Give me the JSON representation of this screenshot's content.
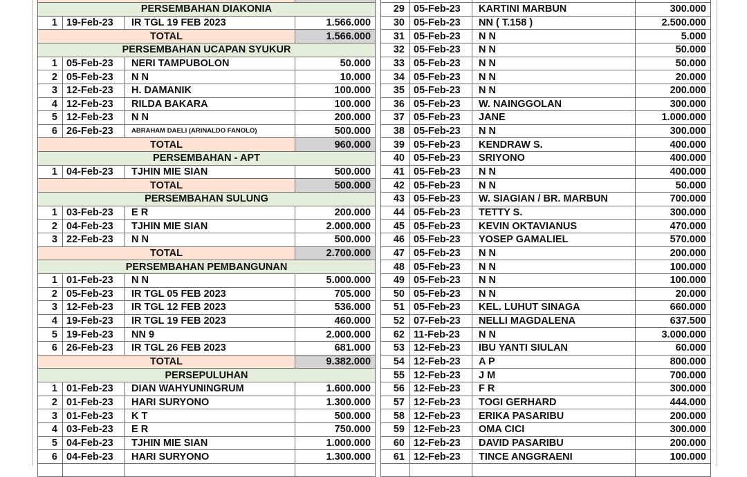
{
  "colors": {
    "section_bg": "#e2eed9",
    "total_bg": "#fce3d4",
    "total_value_bg": "#d4d2d2",
    "border": "#6e6e6e"
  },
  "left": {
    "rows": [
      {
        "type": "partial-total"
      },
      {
        "type": "section",
        "title": "PERSEMBAHAN DIAKONIA"
      },
      {
        "type": "entry",
        "no": "1",
        "date": "19-Feb-23",
        "name": "IR TGL 19 FEB 2023",
        "amount": "1.566.000"
      },
      {
        "type": "total",
        "label": "TOTAL",
        "amount": "1.566.000"
      },
      {
        "type": "section",
        "title": "PERSEMBAHAN UCAPAN SYUKUR"
      },
      {
        "type": "entry",
        "no": "1",
        "date": "05-Feb-23",
        "name": "NERI TAMPUBOLON",
        "amount": "50.000"
      },
      {
        "type": "entry",
        "no": "2",
        "date": "05-Feb-23",
        "name": "N N",
        "amount": "10.000"
      },
      {
        "type": "entry",
        "no": "3",
        "date": "12-Feb-23",
        "name": "H. DAMANIK",
        "amount": "100.000"
      },
      {
        "type": "entry",
        "no": "4",
        "date": "12-Feb-23",
        "name": "RILDA BAKARA",
        "amount": "100.000"
      },
      {
        "type": "entry",
        "no": "5",
        "date": "12-Feb-23",
        "name": "N N",
        "amount": "200.000"
      },
      {
        "type": "entry",
        "no": "6",
        "date": "26-Feb-23",
        "name": "ABRAHAM DAELI (ARINALDO FANOLO)",
        "amount": "500.000",
        "small": true
      },
      {
        "type": "total",
        "label": "TOTAL",
        "amount": "960.000"
      },
      {
        "type": "section",
        "title": "PERSEMBAHAN - APT"
      },
      {
        "type": "entry",
        "no": "1",
        "date": "04-Feb-23",
        "name": "TJHIN MIE SIAN",
        "amount": "500.000"
      },
      {
        "type": "total",
        "label": "TOTAL",
        "amount": "500.000"
      },
      {
        "type": "section",
        "title": "PERSEMBAHAN SULUNG"
      },
      {
        "type": "entry",
        "no": "1",
        "date": "03-Feb-23",
        "name": "E R",
        "amount": "200.000"
      },
      {
        "type": "entry",
        "no": "2",
        "date": "04-Feb-23",
        "name": "TJHIN MIE SIAN",
        "amount": "2.000.000"
      },
      {
        "type": "entry",
        "no": "3",
        "date": "22-Feb-23",
        "name": "N N",
        "amount": "500.000"
      },
      {
        "type": "total",
        "label": "TOTAL",
        "amount": "2.700.000"
      },
      {
        "type": "section",
        "title": "PERSEMBAHAN PEMBANGUNAN"
      },
      {
        "type": "entry",
        "no": "1",
        "date": "01-Feb-23",
        "name": "N N",
        "amount": "5.000.000"
      },
      {
        "type": "entry",
        "no": "2",
        "date": "05-Feb-23",
        "name": "IR TGL 05 FEB 2023",
        "amount": "705.000"
      },
      {
        "type": "entry",
        "no": "3",
        "date": "12-Feb-23",
        "name": "IR TGL 12 FEB 2023",
        "amount": "536.000"
      },
      {
        "type": "entry",
        "no": "4",
        "date": "19-Feb-23",
        "name": "IR TGL 19 FEB 2023",
        "amount": "460.000"
      },
      {
        "type": "entry",
        "no": "5",
        "date": "19-Feb-23",
        "name": "NN 9",
        "amount": "2.000.000"
      },
      {
        "type": "entry",
        "no": "6",
        "date": "26-Feb-23",
        "name": "IR TGL 26 FEB 2023",
        "amount": "681.000"
      },
      {
        "type": "total",
        "label": "TOTAL",
        "amount": "9.382.000"
      },
      {
        "type": "section",
        "title": "PERSEPULUHAN"
      },
      {
        "type": "entry",
        "no": "1",
        "date": "01-Feb-23",
        "name": "DIAN WAHYUNINGRUM",
        "amount": "1.600.000"
      },
      {
        "type": "entry",
        "no": "2",
        "date": "01-Feb-23",
        "name": "HARI SURYONO",
        "amount": "1.300.000"
      },
      {
        "type": "entry",
        "no": "3",
        "date": "01-Feb-23",
        "name": "K T",
        "amount": "500.000"
      },
      {
        "type": "entry",
        "no": "4",
        "date": "03-Feb-23",
        "name": "E R",
        "amount": "750.000"
      },
      {
        "type": "entry",
        "no": "5",
        "date": "04-Feb-23",
        "name": "TJHIN MIE SIAN",
        "amount": "1.000.000"
      },
      {
        "type": "entry",
        "no": "6",
        "date": "04-Feb-23",
        "name": "HARI SURYONO",
        "amount": "1.300.000"
      },
      {
        "type": "blank"
      }
    ]
  },
  "right": {
    "rows": [
      {
        "type": "blank"
      },
      {
        "type": "entry",
        "no": "29",
        "date": "05-Feb-23",
        "name": "KARTINI MARBUN",
        "amount": "300.000"
      },
      {
        "type": "entry",
        "no": "30",
        "date": "05-Feb-23",
        "name": "NN ( T.158 )",
        "amount": "2.500.000"
      },
      {
        "type": "entry",
        "no": "31",
        "date": "05-Feb-23",
        "name": "N N",
        "amount": "5.000"
      },
      {
        "type": "entry",
        "no": "32",
        "date": "05-Feb-23",
        "name": "N N",
        "amount": "50.000"
      },
      {
        "type": "entry",
        "no": "33",
        "date": "05-Feb-23",
        "name": "N N",
        "amount": "50.000"
      },
      {
        "type": "entry",
        "no": "34",
        "date": "05-Feb-23",
        "name": "N N",
        "amount": "20.000"
      },
      {
        "type": "entry",
        "no": "35",
        "date": "05-Feb-23",
        "name": "N N",
        "amount": "200.000"
      },
      {
        "type": "entry",
        "no": "36",
        "date": "05-Feb-23",
        "name": "W. NAINGGOLAN",
        "amount": "300.000"
      },
      {
        "type": "entry",
        "no": "37",
        "date": "05-Feb-23",
        "name": "JANE",
        "amount": "1.000.000"
      },
      {
        "type": "entry",
        "no": "38",
        "date": "05-Feb-23",
        "name": "N N",
        "amount": "300.000"
      },
      {
        "type": "entry",
        "no": "39",
        "date": "05-Feb-23",
        "name": "KENDRAW S.",
        "amount": "400.000"
      },
      {
        "type": "entry",
        "no": "40",
        "date": "05-Feb-23",
        "name": "SRIYONO",
        "amount": "400.000"
      },
      {
        "type": "entry",
        "no": "41",
        "date": "05-Feb-23",
        "name": "N N",
        "amount": "400.000"
      },
      {
        "type": "entry",
        "no": "42",
        "date": "05-Feb-23",
        "name": "N N",
        "amount": "50.000"
      },
      {
        "type": "entry",
        "no": "43",
        "date": "05-Feb-23",
        "name": "W. SIAGIAN / BR. MARBUN",
        "amount": "700.000"
      },
      {
        "type": "entry",
        "no": "44",
        "date": "05-Feb-23",
        "name": "TETTY S.",
        "amount": "300.000"
      },
      {
        "type": "entry",
        "no": "45",
        "date": "05-Feb-23",
        "name": "KEVIN OKTAVIANUS",
        "amount": "470.000"
      },
      {
        "type": "entry",
        "no": "46",
        "date": "05-Feb-23",
        "name": "YOSEP GAMALIEL",
        "amount": "570.000"
      },
      {
        "type": "entry",
        "no": "47",
        "date": "05-Feb-23",
        "name": "N N",
        "amount": "200.000"
      },
      {
        "type": "entry",
        "no": "48",
        "date": "05-Feb-23",
        "name": "N N",
        "amount": "100.000"
      },
      {
        "type": "entry",
        "no": "49",
        "date": "05-Feb-23",
        "name": "N N",
        "amount": "100.000"
      },
      {
        "type": "entry",
        "no": "50",
        "date": "05-Feb-23",
        "name": "N N",
        "amount": "20.000"
      },
      {
        "type": "entry",
        "no": "51",
        "date": "05-Feb-23",
        "name": "KEL. LUHUT SINAGA",
        "amount": "660.000"
      },
      {
        "type": "entry",
        "no": "52",
        "date": "07-Feb-23",
        "name": "NELLI MAGDALENA",
        "amount": "637.500"
      },
      {
        "type": "entry",
        "no": "62",
        "date": "11-Feb-23",
        "name": "N N",
        "amount": "3.000.000"
      },
      {
        "type": "entry",
        "no": "53",
        "date": "12-Feb-23",
        "name": "IBU YANTI SIULAN",
        "amount": "60.000"
      },
      {
        "type": "entry",
        "no": "54",
        "date": "12-Feb-23",
        "name": "A P",
        "amount": "800.000"
      },
      {
        "type": "entry",
        "no": "55",
        "date": "12-Feb-23",
        "name": "J M",
        "amount": "700.000"
      },
      {
        "type": "entry",
        "no": "56",
        "date": "12-Feb-23",
        "name": "F R",
        "amount": "300.000"
      },
      {
        "type": "entry",
        "no": "57",
        "date": "12-Feb-23",
        "name": "TOGI GERHARD",
        "amount": "444.000"
      },
      {
        "type": "entry",
        "no": "58",
        "date": "12-Feb-23",
        "name": "ERIKA PASARIBU",
        "amount": "200.000"
      },
      {
        "type": "entry",
        "no": "59",
        "date": "12-Feb-23",
        "name": "OMA CICI",
        "amount": "300.000"
      },
      {
        "type": "entry",
        "no": "60",
        "date": "12-Feb-23",
        "name": "DAVID PASARIBU",
        "amount": "200.000"
      },
      {
        "type": "entry",
        "no": "61",
        "date": "12-Feb-23",
        "name": "TINCE ANGGRAENI",
        "amount": "100.000"
      },
      {
        "type": "blank"
      }
    ]
  }
}
